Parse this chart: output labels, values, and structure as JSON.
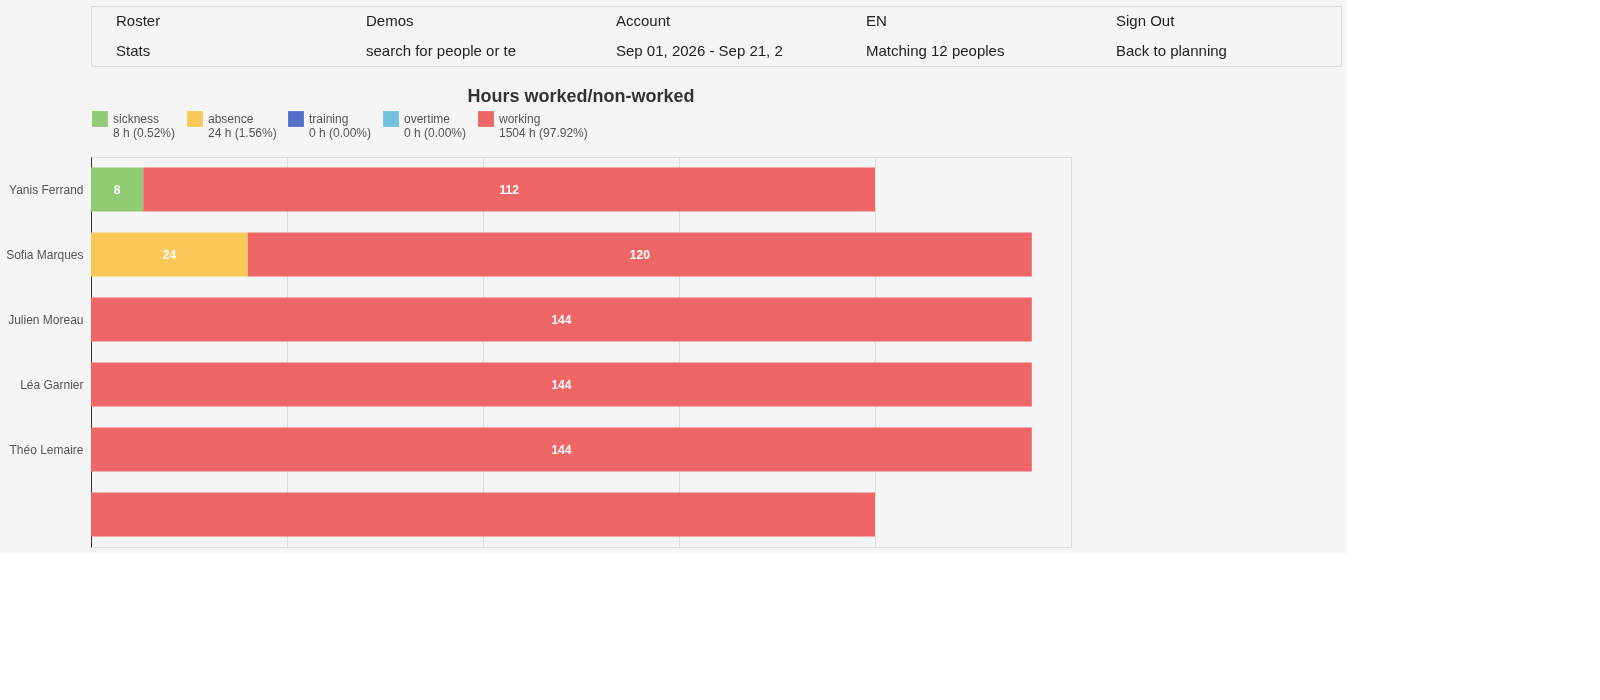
{
  "chart_data": {
    "type": "bar",
    "orientation": "horizontal",
    "stacked": true,
    "title": "Hours worked/non-worked",
    "annotations": [
      "Roster",
      "Demos",
      "Account",
      "EN",
      "Sign Out",
      "Stats",
      "search for people or te",
      "Sep 01, 2026 - Sep 21, 2",
      "Matching 12 peoples",
      "Back to planning"
    ],
    "categories": [
      "Yanis Ferrand",
      "Sofia Marques",
      "Julien Moreau",
      "Léa Garnier",
      "Théo Lemaire",
      null
    ],
    "series": [
      {
        "name": "sickness\n8 h (0.52%)",
        "color": "#91cc75",
        "values": [
          8,
          null,
          null,
          null,
          null,
          null
        ],
        "value_labels": [
          "8",
          null,
          null,
          null,
          null,
          null
        ]
      },
      {
        "name": "absence\n24 h (1.56%)",
        "color": "#fac858",
        "values": [
          null,
          24,
          null,
          null,
          null,
          null
        ],
        "value_labels": [
          null,
          "24",
          null,
          null,
          null,
          null
        ]
      },
      {
        "name": "training\n0 h (0.00%)",
        "color": "#5470c6",
        "values": [
          null,
          null,
          null,
          null,
          null,
          null
        ]
      },
      {
        "name": "overtime\n0 h (0.00%)",
        "color": "#73c0de",
        "values": [
          null,
          null,
          null,
          null,
          null,
          null
        ]
      },
      {
        "name": "working\n1504 h (97.92%)",
        "color": "#ee6666",
        "values": [
          112,
          120,
          144,
          144,
          144,
          120
        ],
        "value_labels": [
          "112",
          "120",
          "144",
          "144",
          "144",
          null
        ]
      }
    ],
    "xlim": [
      0,
      150
    ],
    "xticks": [
      {
        "value": 0,
        "label": null
      },
      {
        "value": 30,
        "label": null
      },
      {
        "value": 60,
        "label": null
      },
      {
        "value": 90,
        "label": null
      },
      {
        "value": 120,
        "label": null
      },
      {
        "value": 150,
        "label": null
      }
    ],
    "grid": "x",
    "legend": "top",
    "tick_labels": "y"
  }
}
